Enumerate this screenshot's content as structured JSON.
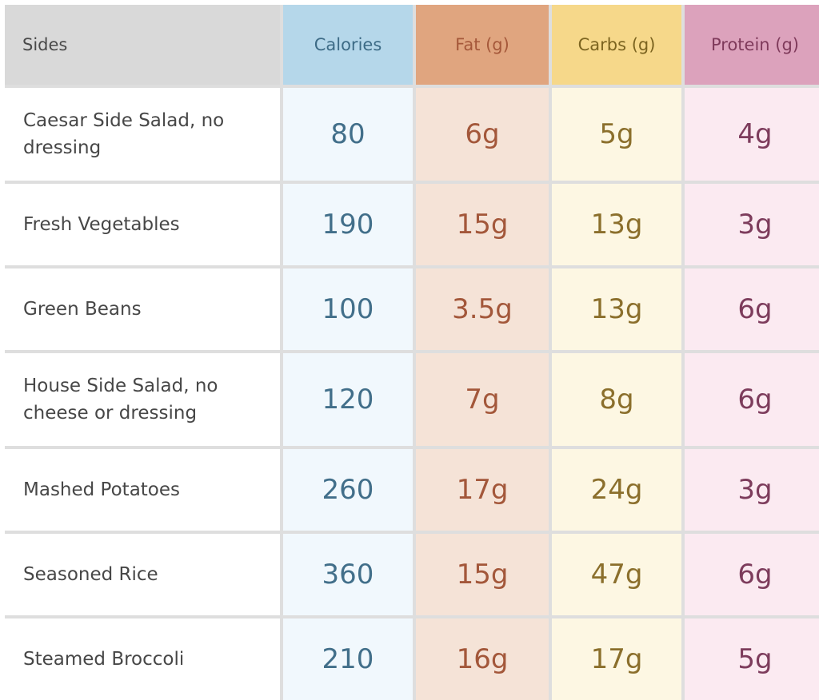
{
  "headers": {
    "sides": "Sides",
    "calories": "Calories",
    "fat": "Fat (g)",
    "carbs": "Carbs (g)",
    "protein": "Protein (g)"
  },
  "rows": [
    {
      "name": "Caesar Side Salad, no dressing",
      "calories": "80",
      "fat": "6g",
      "carbs": "5g",
      "protein": "4g"
    },
    {
      "name": "Fresh Vegetables",
      "calories": "190",
      "fat": "15g",
      "carbs": "13g",
      "protein": "3g"
    },
    {
      "name": "Green Beans",
      "calories": "100",
      "fat": "3.5g",
      "carbs": "13g",
      "protein": "6g"
    },
    {
      "name": "House Side Salad, no cheese or dressing",
      "calories": "120",
      "fat": "7g",
      "carbs": "8g",
      "protein": "6g"
    },
    {
      "name": "Mashed Potatoes",
      "calories": "260",
      "fat": "17g",
      "carbs": "24g",
      "protein": "3g"
    },
    {
      "name": "Seasoned Rice",
      "calories": "360",
      "fat": "15g",
      "carbs": "47g",
      "protein": "6g"
    },
    {
      "name": "Steamed Broccoli",
      "calories": "210",
      "fat": "16g",
      "carbs": "17g",
      "protein": "5g"
    }
  ],
  "colors": {
    "calories_header": "#b5d7ea",
    "fat_header": "#e0a57f",
    "carbs_header": "#f6d88a",
    "protein_header": "#dca2bc"
  }
}
